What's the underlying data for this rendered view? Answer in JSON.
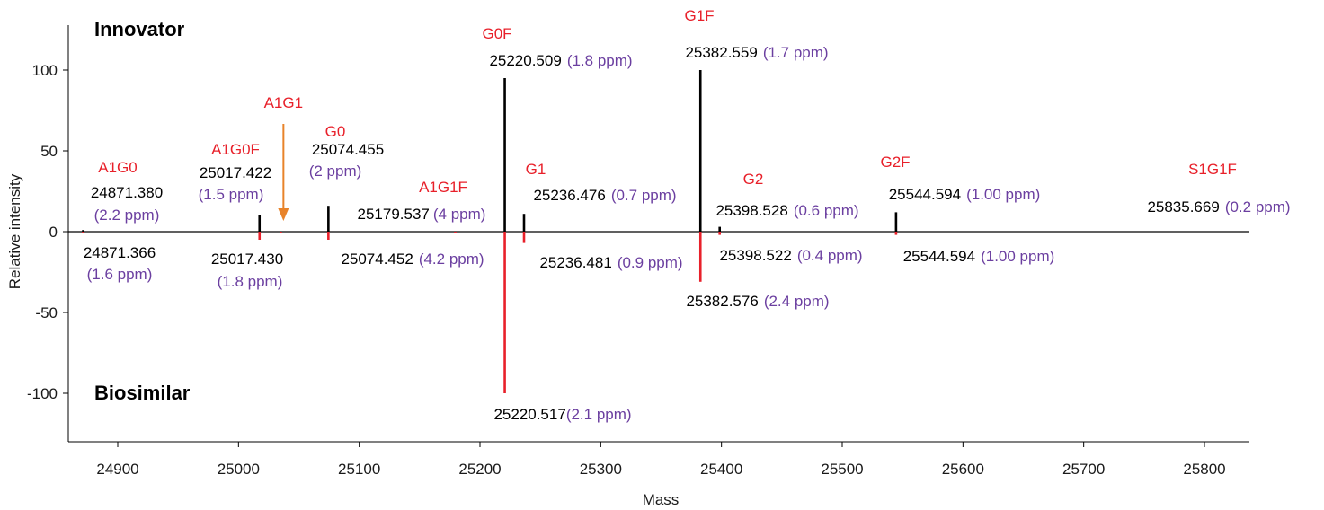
{
  "chart_data": {
    "type": "bar",
    "xlabel": "Mass",
    "ylabel": "Relative intensity",
    "xlim": [
      24860,
      25835
    ],
    "ylim": [
      -130,
      130
    ],
    "xticks": [
      24900,
      25000,
      25100,
      25200,
      25300,
      25400,
      25500,
      25600,
      25700,
      25800
    ],
    "yticks": [
      100,
      50,
      0,
      -50,
      -100
    ],
    "ytick_labels": [
      "100",
      "50",
      "0",
      "-50",
      "-100"
    ],
    "grid": false,
    "panel_labels": {
      "top": "Innovator",
      "bottom": "Biosimilar"
    },
    "colors": {
      "innovator": "#000000",
      "biosimilar": "#e8202a",
      "glycan_label": "#e8202a",
      "ppm": "#6b3fa0",
      "mass": "#000000",
      "arrow": "#e8832a"
    },
    "series": [
      {
        "name": "Innovator",
        "peaks": [
          {
            "glycan": "A1G0",
            "mass": 24871.38,
            "intensity": 1,
            "mass_label": "24871.380",
            "ppm_label": "(2.2 ppm)"
          },
          {
            "glycan": "A1G0F",
            "mass": 25017.422,
            "intensity": 10,
            "mass_label": "25017.422",
            "ppm_label": "(1.5 ppm)"
          },
          {
            "glycan": "G0",
            "mass": 25074.455,
            "intensity": 16,
            "mass_label": "25074.455",
            "ppm_label": "(2 ppm)"
          },
          {
            "glycan": "A1G1F",
            "mass": 25179.537,
            "intensity": 0,
            "mass_label": "25179.537",
            "ppm_label": "(4 ppm)"
          },
          {
            "glycan": "G0F",
            "mass": 25220.509,
            "intensity": 95,
            "mass_label": "25220.509",
            "ppm_label": "(1.8 ppm)"
          },
          {
            "glycan": "G1",
            "mass": 25236.476,
            "intensity": 11,
            "mass_label": "25236.476",
            "ppm_label": "(0.7 ppm)"
          },
          {
            "glycan": "G1F",
            "mass": 25382.559,
            "intensity": 100,
            "mass_label": "25382.559",
            "ppm_label": "(1.7 ppm)"
          },
          {
            "glycan": "G2",
            "mass": 25398.528,
            "intensity": 3,
            "mass_label": "25398.528",
            "ppm_label": "(0.6 ppm)"
          },
          {
            "glycan": "G2F",
            "mass": 25544.594,
            "intensity": 12,
            "mass_label": "25544.594",
            "ppm_label": "(1.00 ppm)"
          },
          {
            "glycan": "S1G1F",
            "mass": 25835.669,
            "intensity": 0,
            "mass_label": "25835.669",
            "ppm_label": "(0.2 ppm)"
          }
        ]
      },
      {
        "name": "Biosimilar",
        "peaks": [
          {
            "glycan": "A1G0",
            "mass": 24871.366,
            "intensity": -1,
            "mass_label": "24871.366",
            "ppm_label": "(1.6 ppm)"
          },
          {
            "glycan": "A1G0F",
            "mass": 25017.43,
            "intensity": -5,
            "mass_label": "25017.430",
            "ppm_label": "(1.8 ppm)"
          },
          {
            "glycan": "A1G1",
            "mass": 25035,
            "intensity": -1,
            "mass_label": "",
            "ppm_label": ""
          },
          {
            "glycan": "G0",
            "mass": 25074.452,
            "intensity": -5,
            "mass_label": "25074.452",
            "ppm_label": "(4.2 ppm)"
          },
          {
            "glycan": "A1G1F",
            "mass": 25179.537,
            "intensity": -1,
            "mass_label": "",
            "ppm_label": ""
          },
          {
            "glycan": "G0F",
            "mass": 25220.517,
            "intensity": -100,
            "mass_label": "25220.517",
            "ppm_label": "(2.1 ppm)"
          },
          {
            "glycan": "G1",
            "mass": 25236.481,
            "intensity": -7,
            "mass_label": "25236.481",
            "ppm_label": "(0.9 ppm)"
          },
          {
            "glycan": "G1F",
            "mass": 25382.576,
            "intensity": -31,
            "mass_label": "25382.576",
            "ppm_label": "(2.4 ppm)"
          },
          {
            "glycan": "G2",
            "mass": 25398.522,
            "intensity": -2,
            "mass_label": "25398.522",
            "ppm_label": "(0.4 ppm)"
          },
          {
            "glycan": "G2F",
            "mass": 25544.594,
            "intensity": -2,
            "mass_label": "25544.594",
            "ppm_label": "(1.00 ppm)"
          }
        ]
      }
    ],
    "annotations": [
      {
        "text": "A1G1",
        "type": "arrow",
        "target_mass": 25035
      }
    ]
  }
}
